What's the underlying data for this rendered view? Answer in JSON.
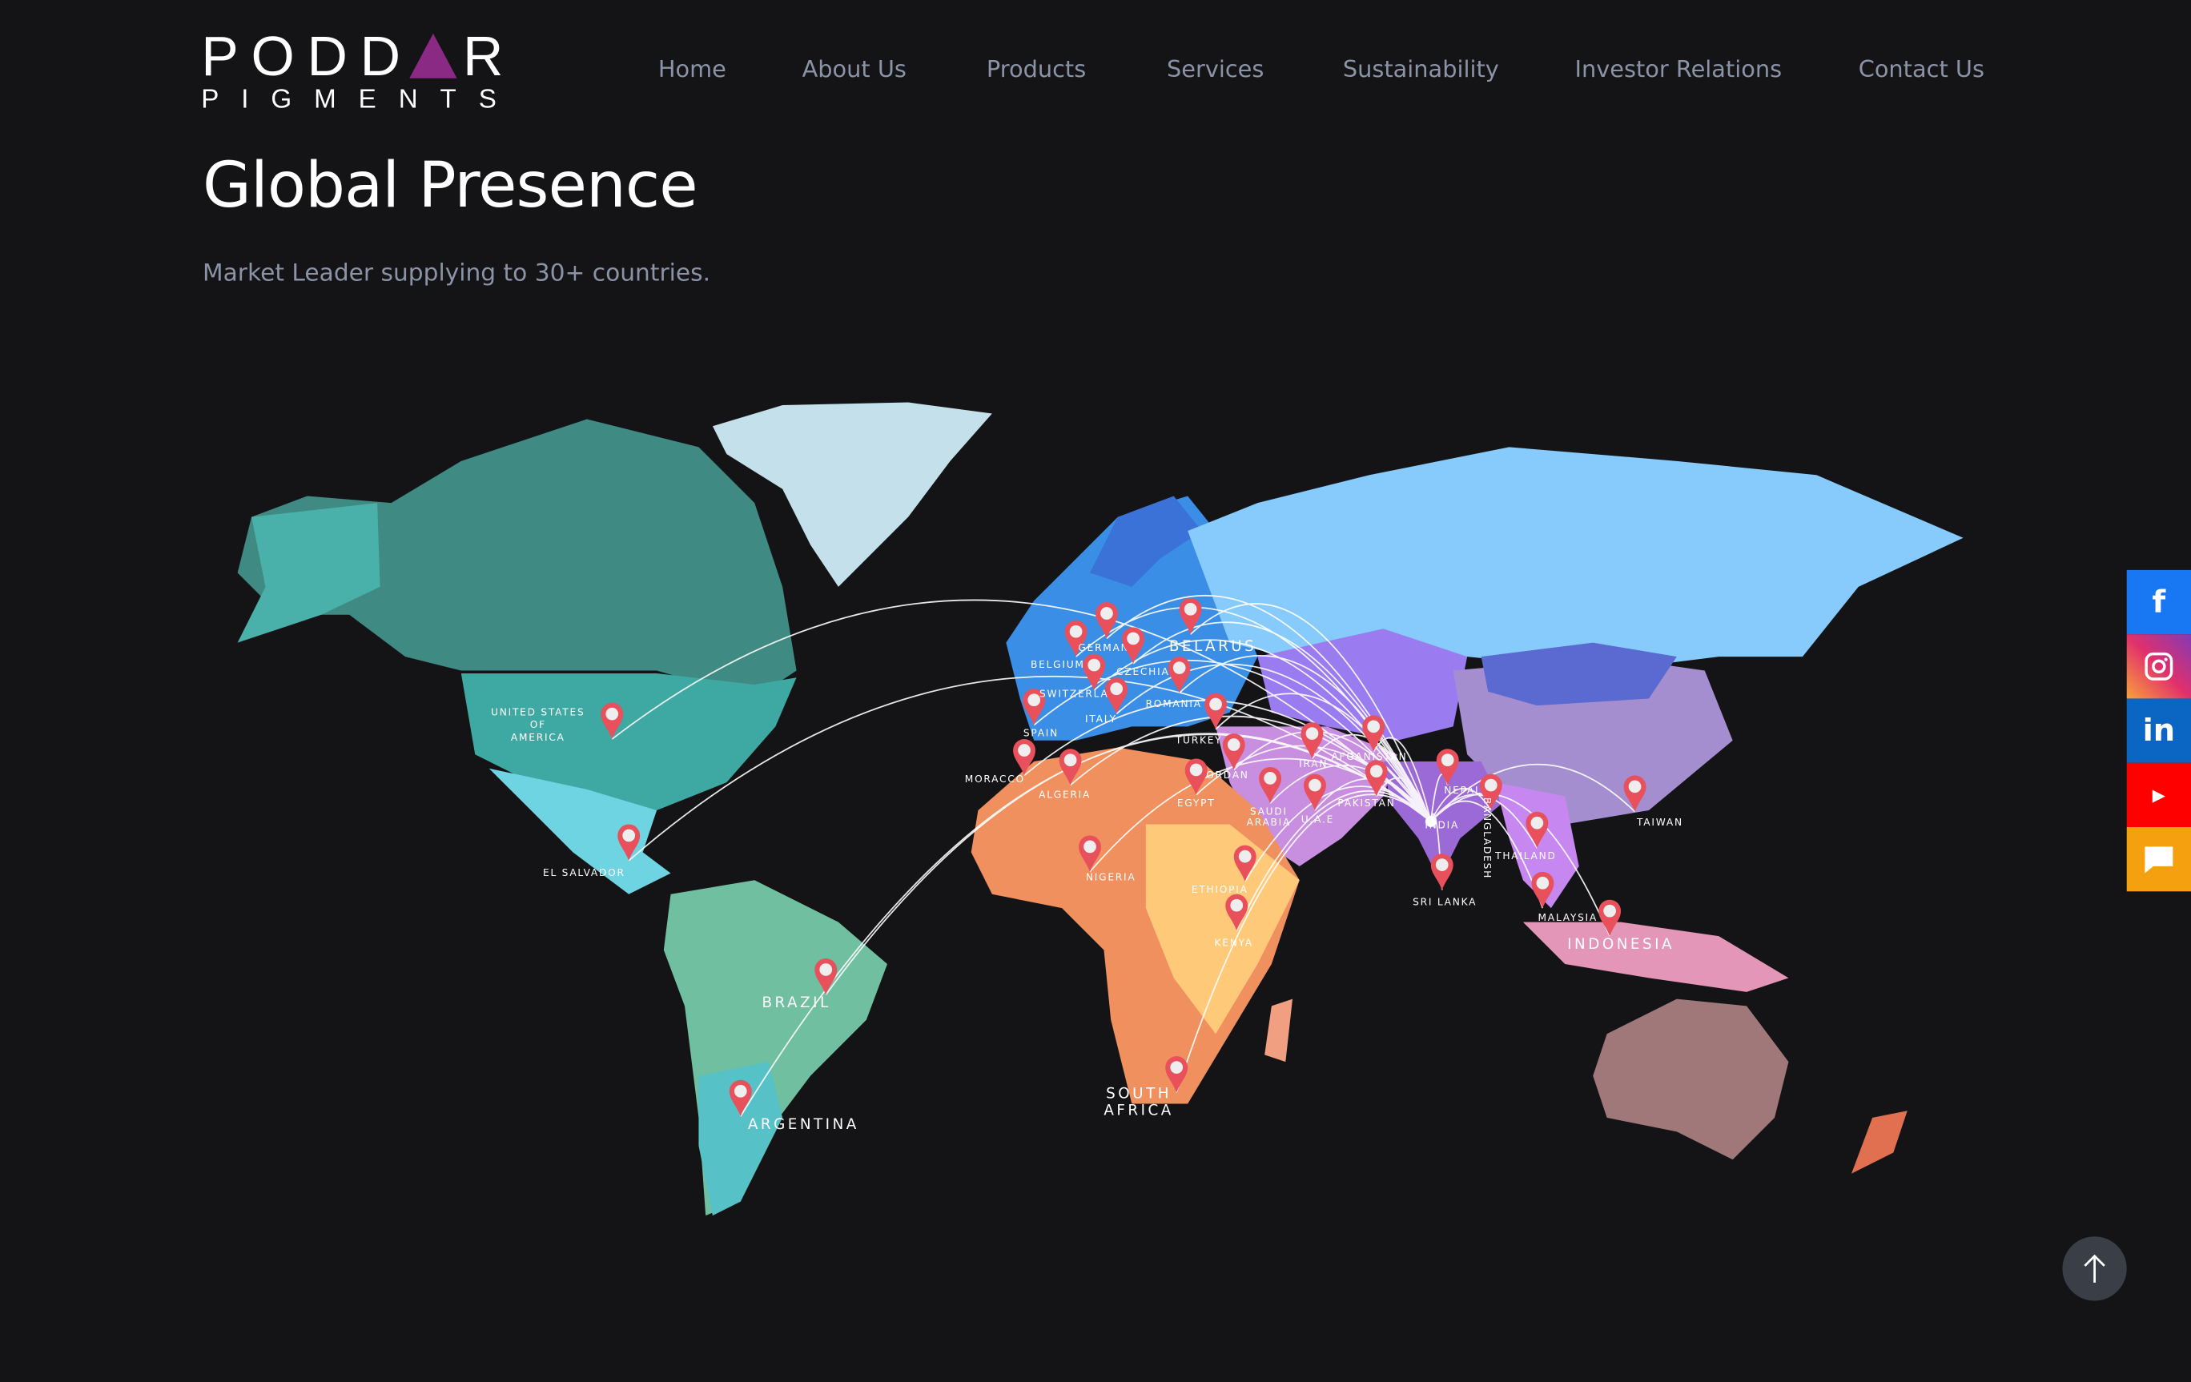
{
  "brand": {
    "line1": "PODDAR",
    "line2": "PIGMENTS",
    "logo_color": "#8a2a84"
  },
  "nav": {
    "items": [
      {
        "label": "Home"
      },
      {
        "label": "About Us"
      },
      {
        "label": "Products"
      },
      {
        "label": "Services"
      },
      {
        "label": "Sustainability"
      },
      {
        "label": "Investor Relations"
      },
      {
        "label": "Contact Us"
      }
    ]
  },
  "hero": {
    "title": "Global Presence",
    "subtitle": "Market Leader supplying to 30+ countries."
  },
  "map": {
    "hub": "INDIA",
    "pin_color": "#e8505b",
    "countries": [
      "UNITED STATES OF AMERICA",
      "EL SALVADOR",
      "BRAZIL",
      "ARGENTINA",
      "SOUTH AFRICA",
      "MORACCO",
      "ALGERIA",
      "SPAIN",
      "BELGIUM",
      "GERMAN",
      "CZECHIA",
      "SWITZERLAND",
      "ITALY",
      "BELARUS",
      "ROMANIA",
      "TURKEY",
      "JORDAN",
      "EGYPT",
      "SAUDI ARABIA",
      "U.A.E",
      "IRAN",
      "AFGANISTAN",
      "PAKISTAN",
      "NEPAL",
      "BANGLADESH",
      "THAILAND",
      "SRI LANKA",
      "MALAYSIA",
      "INDONESIA",
      "TAIWAN",
      "ETHIOPIA",
      "KENYA",
      "NIGERIA"
    ]
  },
  "social": [
    {
      "icon": "facebook-icon",
      "color": "#1877f2"
    },
    {
      "icon": "instagram-icon",
      "color": "#d6249f"
    },
    {
      "icon": "linkedin-icon",
      "color": "#0a66c2"
    },
    {
      "icon": "youtube-icon",
      "color": "#ff0000"
    },
    {
      "icon": "chat-icon",
      "color": "#f5a00f"
    }
  ],
  "scroll_top": {
    "icon": "arrow-up-icon"
  }
}
